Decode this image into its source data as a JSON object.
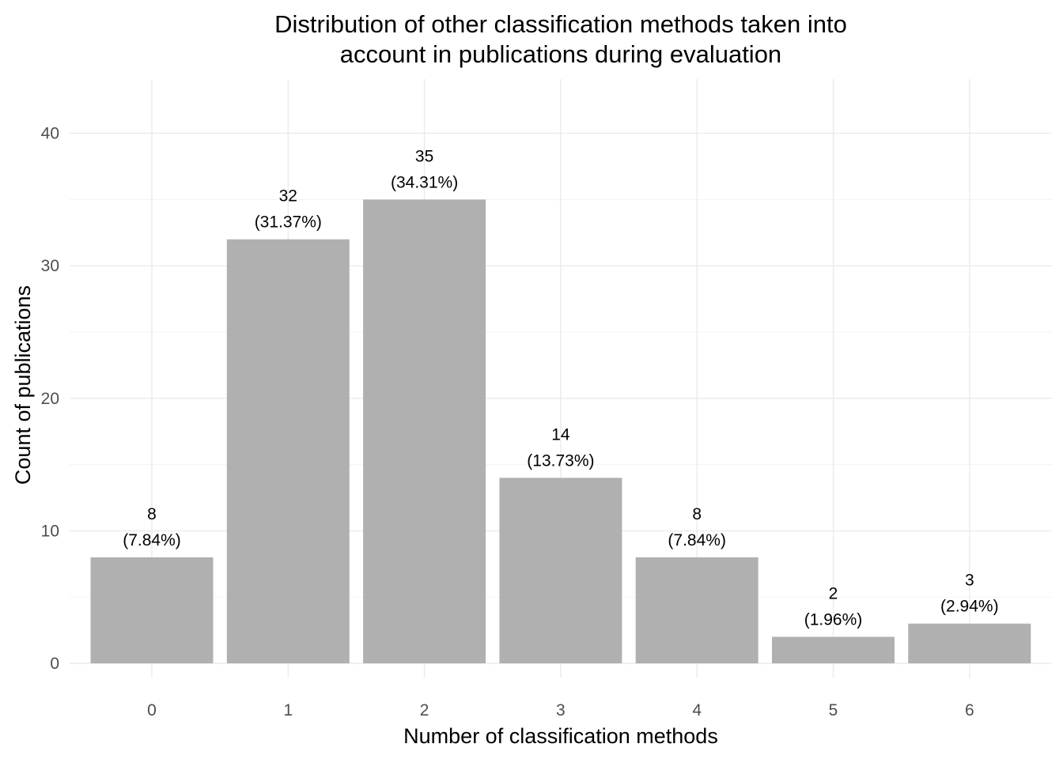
{
  "chart_data": {
    "type": "bar",
    "title_lines": [
      "Distribution of other classification methods taken into",
      "account in publications during evaluation"
    ],
    "xlabel": "Number of classification methods",
    "ylabel": "Count of publications",
    "categories": [
      "0",
      "1",
      "2",
      "3",
      "4",
      "5",
      "6"
    ],
    "values": [
      8,
      32,
      35,
      14,
      8,
      2,
      3
    ],
    "percent_labels": [
      "(7.84%)",
      "(31.37%)",
      "(34.31%)",
      "(13.73%)",
      "(7.84%)",
      "(1.96%)",
      "(2.94%)"
    ],
    "ylim": [
      0,
      43
    ],
    "y_ticks": [
      0,
      10,
      20,
      30,
      40
    ],
    "grid": true,
    "legend": "none",
    "bar_color": "#b0b0b0"
  }
}
